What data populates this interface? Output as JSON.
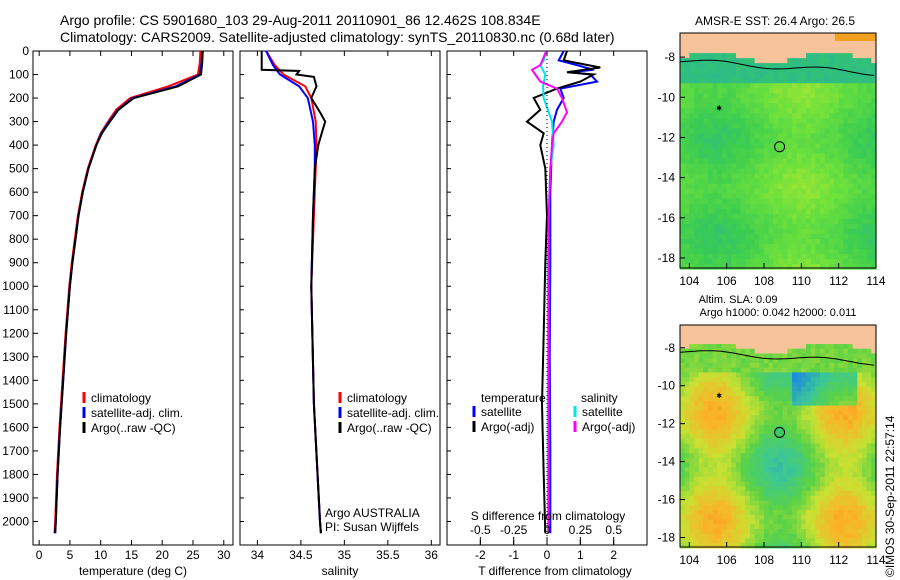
{
  "header": {
    "line1": "Argo profile: CS 5901680_103 29-Aug-2011 20110901_86 12.462S 108.834E",
    "line2": "Climatology: CARS2009. Satellite-adjusted climatology: synTS_20110830.nc (0.68d later)"
  },
  "credit": "©IMOS 30-Sep-2011 22:57:14",
  "colors": {
    "climatology": "#ff0000",
    "satellite": "#0000ff",
    "argo": "#000000",
    "sat_salinity": "#00e5ee",
    "argo_salinity": "#ff00ff",
    "land": "#f6c39a",
    "coast": "#000000"
  },
  "chart_data": [
    {
      "type": "line",
      "xlabel": "temperature (deg C)",
      "ylabel": "",
      "xlim": [
        -1,
        31.5
      ],
      "ylim": [
        2100,
        0
      ],
      "xticks": [
        0,
        5,
        10,
        15,
        20,
        25,
        30
      ],
      "yticks": [
        0,
        100,
        200,
        300,
        400,
        500,
        600,
        700,
        800,
        900,
        1000,
        1100,
        1200,
        1300,
        1400,
        1500,
        1600,
        1700,
        1800,
        1900,
        2000
      ],
      "legend": {
        "position": "bottom-right",
        "entries": [
          "climatology",
          "satellite-adj. clim.",
          "Argo(..raw -QC)"
        ]
      },
      "series": [
        {
          "name": "climatology",
          "color": "#ff0000",
          "depth": [
            0,
            50,
            100,
            150,
            200,
            250,
            300,
            350,
            400,
            500,
            600,
            700,
            800,
            900,
            1000,
            1200,
            1400,
            1600,
            1800,
            2000,
            2050
          ],
          "values": [
            26.2,
            26.1,
            25.8,
            21,
            14.8,
            12.5,
            11.2,
            10,
            9.2,
            7.9,
            7,
            6.3,
            5.8,
            5.3,
            4.9,
            4.3,
            3.8,
            3.3,
            2.9,
            2.6,
            2.5
          ]
        },
        {
          "name": "satellite-adj. clim.",
          "color": "#0000ff",
          "depth": [
            0,
            50,
            100,
            150,
            200,
            250,
            300,
            350,
            400,
            500,
            600,
            700,
            800,
            900,
            1000,
            1200,
            1400,
            1600,
            1800,
            2000,
            2050
          ],
          "values": [
            26.5,
            26.4,
            26.1,
            22.2,
            15.2,
            12.8,
            11.4,
            10.1,
            9.3,
            8,
            7.1,
            6.4,
            5.9,
            5.4,
            5,
            4.4,
            3.9,
            3.4,
            3,
            2.7,
            2.6
          ]
        },
        {
          "name": "Argo(..raw -QC)",
          "color": "#000000",
          "depth": [
            0,
            50,
            100,
            150,
            200,
            250,
            300,
            350,
            400,
            500,
            600,
            700,
            800,
            900,
            1000,
            1200,
            1400,
            1600,
            1800,
            2000,
            2050
          ],
          "values": [
            26.6,
            26.5,
            26.3,
            22.6,
            15.4,
            12.9,
            11.5,
            10.2,
            9.3,
            8,
            7.1,
            6.4,
            5.9,
            5.4,
            5,
            4.4,
            3.9,
            3.4,
            3,
            2.7,
            2.6
          ]
        }
      ]
    },
    {
      "type": "line",
      "xlabel": "salinity",
      "xlim": [
        33.8,
        36.1
      ],
      "ylim": [
        2100,
        0
      ],
      "xticks": [
        34,
        34.5,
        35,
        35.5,
        36
      ],
      "legend": {
        "position": "bottom-right",
        "entries": [
          "climatology",
          "satellite-adj. clim.",
          "Argo(..raw -QC)"
        ]
      },
      "annotation": [
        "Argo AUSTRALIA",
        "PI: Susan Wijffels"
      ],
      "series": [
        {
          "name": "climatology",
          "color": "#ff0000",
          "depth": [
            0,
            60,
            100,
            150,
            200,
            300,
            400,
            500,
            700,
            1000,
            1500,
            2000,
            2050
          ],
          "values": [
            34.1,
            34.2,
            34.3,
            34.55,
            34.62,
            34.67,
            34.68,
            34.67,
            34.65,
            34.62,
            34.65,
            34.72,
            34.73
          ]
        },
        {
          "name": "satellite-adj. clim.",
          "color": "#0000ff",
          "depth": [
            0,
            60,
            100,
            150,
            200,
            300,
            400,
            500,
            700,
            1000,
            1500,
            2000,
            2050
          ],
          "values": [
            34.1,
            34.18,
            34.26,
            34.48,
            34.58,
            34.64,
            34.66,
            34.66,
            34.64,
            34.62,
            34.65,
            34.72,
            34.73
          ]
        },
        {
          "name": "Argo(..raw -QC)",
          "color": "#000000",
          "depth": [
            0,
            80,
            85,
            100,
            110,
            150,
            200,
            260,
            300,
            350,
            400,
            500,
            700,
            1000,
            1500,
            2000,
            2050
          ],
          "values": [
            34.05,
            34.05,
            34.48,
            34.45,
            34.65,
            34.68,
            34.62,
            34.72,
            34.78,
            34.74,
            34.7,
            34.66,
            34.64,
            34.62,
            34.65,
            34.72,
            34.73
          ]
        }
      ]
    },
    {
      "type": "line",
      "xlabel": "T difference from climatology",
      "secondary_xlabel": "S difference from climatology",
      "xlim": [
        -3,
        3
      ],
      "ylim": [
        2100,
        0
      ],
      "xticks": [
        -2,
        -1,
        0,
        1,
        2
      ],
      "secondary_ticks": [
        {
          "value": -0.5,
          "label": "-0.5"
        },
        {
          "value": -0.25,
          "label": "-0.25"
        },
        {
          "value": 0,
          "label": "0"
        },
        {
          "value": 0.25,
          "label": "0.25"
        },
        {
          "value": 0.5,
          "label": "0.5"
        }
      ],
      "legend": {
        "position": "bottom",
        "temperature_title": "temperature",
        "salinity_title": "salinity",
        "temperature_entries": [
          "satellite",
          "Argo(-adj)"
        ],
        "salinity_entries": [
          "satellite",
          "Argo(-adj)"
        ]
      },
      "series": [
        {
          "name": "temperature satellite",
          "color": "#0000ff",
          "depth": [
            0,
            40,
            60,
            80,
            90,
            100,
            130,
            160,
            200,
            250,
            300,
            400,
            600,
            900,
            1300,
            1700,
            2050
          ],
          "values": [
            0.5,
            0.35,
            0.9,
            1.4,
            0.7,
            1.3,
            1.5,
            0.4,
            0.5,
            0.3,
            0.2,
            0.15,
            0.1,
            0.1,
            0.08,
            0.1,
            0.1
          ]
        },
        {
          "name": "temperature Argo(-adj)",
          "color": "#000000",
          "depth": [
            0,
            40,
            70,
            90,
            100,
            130,
            160,
            200,
            250,
            300,
            350,
            400,
            500,
            700,
            900,
            1200,
            1500,
            1800,
            2050
          ],
          "values": [
            0.6,
            0.5,
            1.6,
            0.6,
            1.4,
            1.0,
            0.3,
            -0.4,
            -0.2,
            -0.6,
            -0.1,
            -0.2,
            -0.05,
            0,
            -0.05,
            -0.1,
            -0.15,
            -0.1,
            -0.05
          ]
        },
        {
          "name": "salinity satellite",
          "color": "#00e5ee",
          "depth": [
            0,
            40,
            60,
            100,
            150,
            200,
            300,
            400,
            500,
            700,
            900,
            1200,
            1600,
            2050
          ],
          "values": [
            -0.03,
            -0.1,
            -0.2,
            -0.05,
            -0.12,
            -0.1,
            0.15,
            0.2,
            0.1,
            0.05,
            0.02,
            0.03,
            0.02,
            0.03
          ]
        },
        {
          "name": "salinity Argo(-adj)",
          "color": "#ff00ff",
          "depth": [
            0,
            60,
            80,
            100,
            130,
            160,
            200,
            260,
            300,
            350,
            400,
            500,
            700,
            900,
            1200,
            1600,
            2050
          ],
          "values": [
            -0.02,
            -0.2,
            -0.45,
            -0.35,
            -0.2,
            0.3,
            0.45,
            0.6,
            0.45,
            0.2,
            0.15,
            0.1,
            0.05,
            0.05,
            0.05,
            0.05,
            0.05
          ]
        }
      ]
    },
    {
      "type": "heatmap",
      "title": "AMSR-E SST: 26.4  Argo: 26.5",
      "xlim": [
        103.5,
        114
      ],
      "ylim": [
        -18.5,
        -6.8
      ],
      "xticks": [
        104,
        106,
        108,
        110,
        112,
        114
      ],
      "yticks": [
        -8,
        -10,
        -12,
        -14,
        -16,
        -18
      ],
      "argo_position": {
        "lon": 108.834,
        "lat": -12.462
      }
    },
    {
      "type": "heatmap",
      "title": "Altim. SLA: 0.09",
      "subtitle": "Argo h1000: 0.042 h2000: 0.011",
      "xlim": [
        103.5,
        114
      ],
      "ylim": [
        -18.5,
        -6.8
      ],
      "xticks": [
        104,
        106,
        108,
        110,
        112,
        114
      ],
      "yticks": [
        -8,
        -10,
        -12,
        -14,
        -16,
        -18
      ],
      "argo_position": {
        "lon": 108.834,
        "lat": -12.462
      }
    }
  ]
}
